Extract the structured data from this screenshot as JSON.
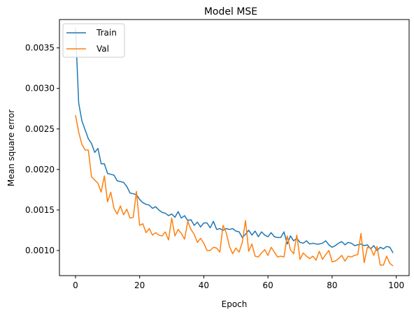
{
  "chart_data": {
    "type": "line",
    "title": "Model MSE",
    "xlabel": "Epoch",
    "ylabel": "Mean square error",
    "xlim": [
      -5,
      104
    ],
    "ylim": [
      0.00069,
      0.00385
    ],
    "xticks": [
      0,
      20,
      40,
      60,
      80,
      100
    ],
    "yticks": [
      0.001,
      0.0015,
      0.002,
      0.0025,
      0.003,
      0.0035
    ],
    "ytick_labels": [
      "0.0010",
      "0.0015",
      "0.0020",
      "0.0025",
      "0.0030",
      "0.0035"
    ],
    "legend_position": "top-left",
    "colors": {
      "Train": "#1f77b4",
      "Val": "#ff7f0e"
    },
    "series": [
      {
        "name": "Train",
        "values": [
          0.00375,
          0.00282,
          0.0026,
          0.00249,
          0.00238,
          0.00232,
          0.00221,
          0.00226,
          0.00207,
          0.00207,
          0.00195,
          0.00194,
          0.00193,
          0.00186,
          0.00185,
          0.00184,
          0.00179,
          0.00171,
          0.0017,
          0.00169,
          0.00163,
          0.00159,
          0.00157,
          0.00156,
          0.00152,
          0.00154,
          0.0015,
          0.00147,
          0.00146,
          0.00143,
          0.00145,
          0.00141,
          0.00148,
          0.0014,
          0.00143,
          0.00137,
          0.00138,
          0.00131,
          0.00135,
          0.00129,
          0.00134,
          0.00134,
          0.00128,
          0.00136,
          0.00126,
          0.00127,
          0.00125,
          0.00127,
          0.00126,
          0.00127,
          0.00124,
          0.00123,
          0.00116,
          0.0012,
          0.00125,
          0.00119,
          0.00124,
          0.00117,
          0.00123,
          0.00119,
          0.00117,
          0.00122,
          0.00117,
          0.00116,
          0.00116,
          0.00123,
          0.00108,
          0.00118,
          0.00112,
          0.00115,
          0.0011,
          0.00109,
          0.00112,
          0.00108,
          0.00109,
          0.00108,
          0.00108,
          0.00109,
          0.00112,
          0.00107,
          0.00104,
          0.00106,
          0.00109,
          0.00111,
          0.00107,
          0.0011,
          0.00109,
          0.00106,
          0.00107,
          0.00108,
          0.00106,
          0.00107,
          0.00102,
          0.00106,
          0.001,
          0.00104,
          0.00102,
          0.00105,
          0.00104,
          0.00097
        ]
      },
      {
        "name": "Val",
        "values": [
          0.00267,
          0.00246,
          0.00231,
          0.00224,
          0.00224,
          0.00191,
          0.00187,
          0.00183,
          0.00172,
          0.00192,
          0.0016,
          0.00172,
          0.00152,
          0.00145,
          0.00155,
          0.00144,
          0.00151,
          0.0014,
          0.00141,
          0.00173,
          0.00131,
          0.00133,
          0.00122,
          0.00127,
          0.00119,
          0.00122,
          0.00119,
          0.00118,
          0.00123,
          0.00113,
          0.0014,
          0.00118,
          0.00126,
          0.00121,
          0.00114,
          0.00136,
          0.00126,
          0.0012,
          0.0011,
          0.00115,
          0.00109,
          0.001,
          0.001,
          0.00104,
          0.00103,
          0.00098,
          0.00131,
          0.00122,
          0.00105,
          0.00096,
          0.00103,
          0.00098,
          0.0011,
          0.00137,
          0.00099,
          0.00108,
          0.00093,
          0.00092,
          0.00097,
          0.00101,
          0.00094,
          0.00104,
          0.00098,
          0.00092,
          0.00093,
          0.00092,
          0.00118,
          0.00101,
          0.00096,
          0.00119,
          0.00089,
          0.00097,
          0.00093,
          0.0009,
          0.00093,
          0.00088,
          0.00099,
          0.00089,
          0.00095,
          0.001,
          0.00086,
          0.00087,
          0.0009,
          0.00094,
          0.00087,
          0.00093,
          0.00092,
          0.00094,
          0.00095,
          0.00121,
          0.00085,
          0.00104,
          0.00103,
          0.00094,
          0.00105,
          0.00082,
          0.00082,
          0.00093,
          0.00084,
          0.00081
        ]
      }
    ]
  }
}
